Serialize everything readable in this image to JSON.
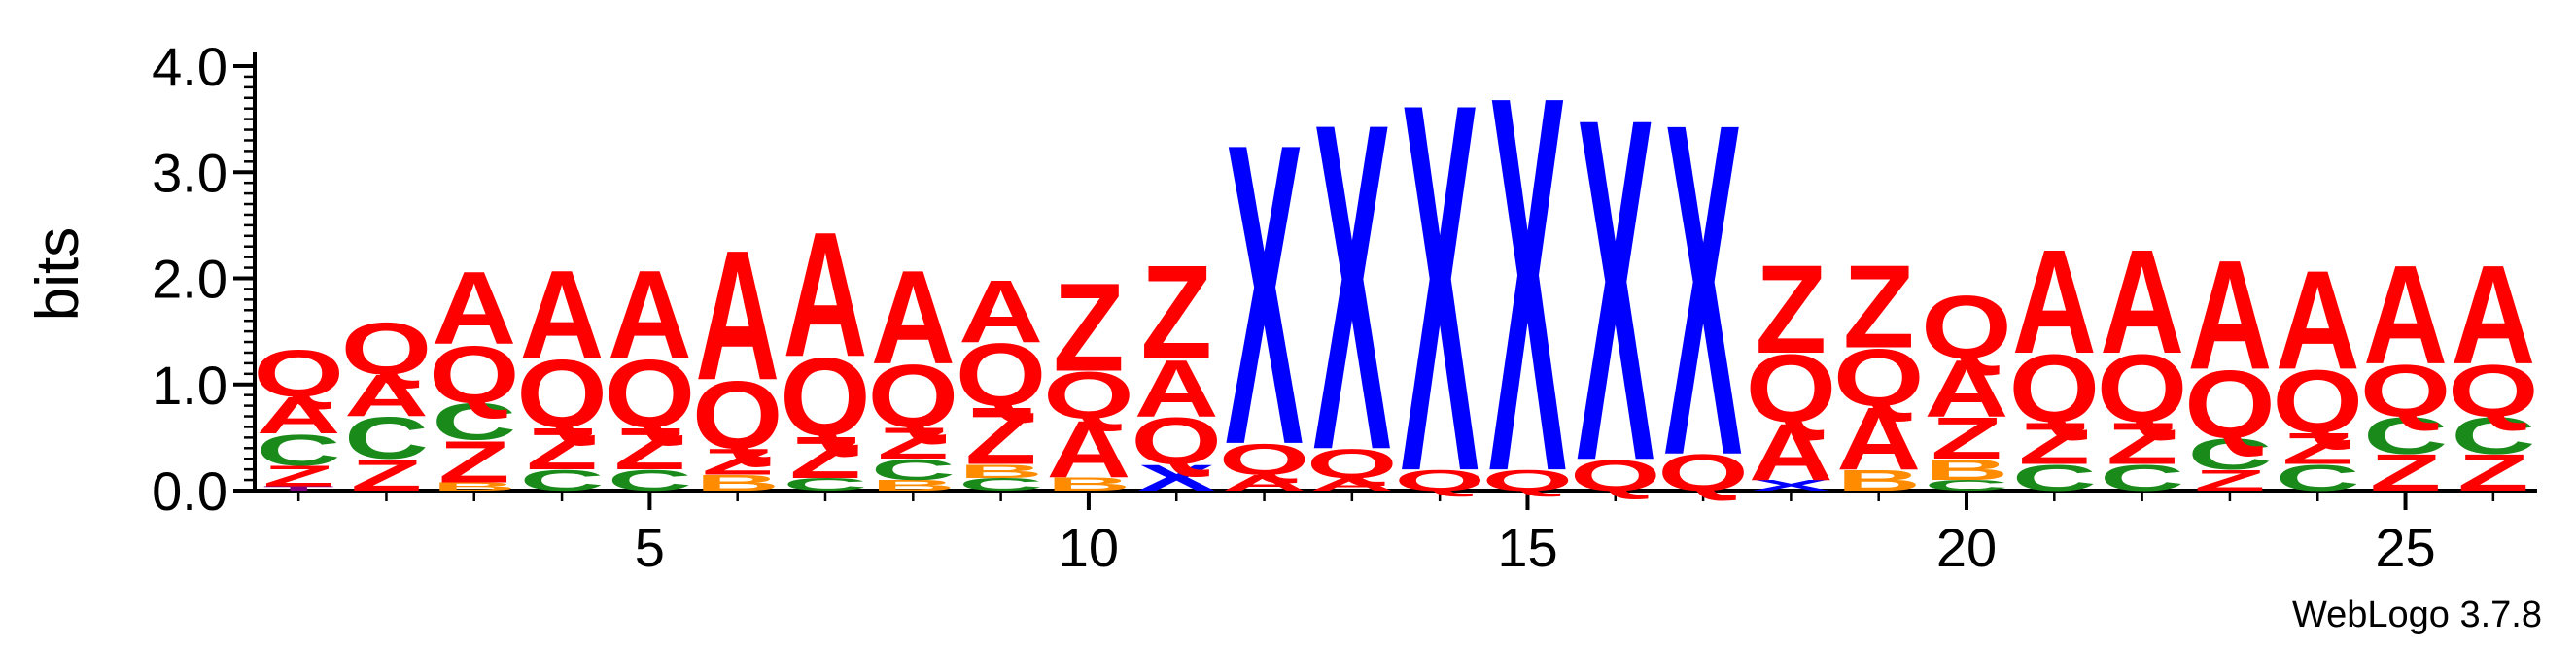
{
  "chart_data": {
    "type": "sequence-logo",
    "ylabel": "bits",
    "ylim": [
      0,
      4.0
    ],
    "yticks": [
      "0.0",
      "1.0",
      "2.0",
      "3.0",
      "4.0"
    ],
    "xticks": [
      "5",
      "10",
      "15",
      "20",
      "25"
    ],
    "xtick_positions": [
      5,
      10,
      15,
      20,
      25
    ],
    "credit": "WebLogo 3.7.8",
    "colors": {
      "Q": "#ff0000",
      "A": "#ff0000",
      "Z": "#ff0000",
      "X": "#0000ff",
      "C": "#1a8a1a",
      "B": "#ff8c00",
      "T": "#800080"
    },
    "positions": [
      {
        "pos": 1,
        "stack": [
          [
            "T",
            0.04
          ],
          [
            "Z",
            0.2
          ],
          [
            "C",
            0.3
          ],
          [
            "A",
            0.35
          ],
          [
            "Q",
            0.45
          ]
        ]
      },
      {
        "pos": 2,
        "stack": [
          [
            "Z",
            0.3
          ],
          [
            "C",
            0.4
          ],
          [
            "A",
            0.4
          ],
          [
            "Q",
            0.5
          ]
        ]
      },
      {
        "pos": 3,
        "stack": [
          [
            "B",
            0.08
          ],
          [
            "Z",
            0.4
          ],
          [
            "C",
            0.35
          ],
          [
            "Q",
            0.55
          ],
          [
            "A",
            0.7
          ]
        ]
      },
      {
        "pos": 4,
        "stack": [
          [
            "C",
            0.2
          ],
          [
            "Z",
            0.4
          ],
          [
            "Q",
            0.65
          ],
          [
            "A",
            0.85
          ]
        ]
      },
      {
        "pos": 5,
        "stack": [
          [
            "C",
            0.2
          ],
          [
            "Z",
            0.4
          ],
          [
            "Q",
            0.65
          ],
          [
            "A",
            0.85
          ]
        ]
      },
      {
        "pos": 6,
        "stack": [
          [
            "B",
            0.15
          ],
          [
            "Z",
            0.25
          ],
          [
            "Q",
            0.65
          ],
          [
            "A",
            1.25
          ]
        ]
      },
      {
        "pos": 7,
        "stack": [
          [
            "C",
            0.12
          ],
          [
            "Z",
            0.4
          ],
          [
            "Q",
            0.75
          ],
          [
            "A",
            1.2
          ]
        ]
      },
      {
        "pos": 8,
        "stack": [
          [
            "B",
            0.1
          ],
          [
            "C",
            0.2
          ],
          [
            "Z",
            0.3
          ],
          [
            "Q",
            0.6
          ],
          [
            "A",
            0.9
          ]
        ]
      },
      {
        "pos": 9,
        "stack": [
          [
            "C",
            0.12
          ],
          [
            "B",
            0.13
          ],
          [
            "Z",
            0.55
          ],
          [
            "Q",
            0.6
          ],
          [
            "A",
            0.6
          ]
        ]
      },
      {
        "pos": 10,
        "stack": [
          [
            "B",
            0.13
          ],
          [
            "A",
            0.55
          ],
          [
            "Q",
            0.45
          ],
          [
            "Z",
            0.85
          ]
        ]
      },
      {
        "pos": 11,
        "stack": [
          [
            "X",
            0.25
          ],
          [
            "Q",
            0.45
          ],
          [
            "A",
            0.55
          ],
          [
            "Z",
            0.9
          ]
        ]
      },
      {
        "pos": 12,
        "stack": [
          [
            "A",
            0.15
          ],
          [
            "Q",
            0.3
          ],
          [
            "X",
            2.9
          ]
        ]
      },
      {
        "pos": 13,
        "stack": [
          [
            "A",
            0.12
          ],
          [
            "Q",
            0.28
          ],
          [
            "X",
            3.15
          ]
        ]
      },
      {
        "pos": 14,
        "stack": [
          [
            "Q",
            0.2
          ],
          [
            "X",
            3.55
          ]
        ]
      },
      {
        "pos": 15,
        "stack": [
          [
            "Q",
            0.2
          ],
          [
            "X",
            3.62
          ]
        ]
      },
      {
        "pos": 16,
        "stack": [
          [
            "Q",
            0.3
          ],
          [
            "X",
            3.3
          ]
        ]
      },
      {
        "pos": 17,
        "stack": [
          [
            "Q",
            0.35
          ],
          [
            "X",
            3.2
          ]
        ]
      },
      {
        "pos": 18,
        "stack": [
          [
            "X",
            0.1
          ],
          [
            "A",
            0.55
          ],
          [
            "Q",
            0.65
          ],
          [
            "Z",
            0.85
          ]
        ]
      },
      {
        "pos": 19,
        "stack": [
          [
            "B",
            0.2
          ],
          [
            "A",
            0.6
          ],
          [
            "Q",
            0.55
          ],
          [
            "Z",
            0.8
          ]
        ]
      },
      {
        "pos": 20,
        "stack": [
          [
            "C",
            0.1
          ],
          [
            "B",
            0.2
          ],
          [
            "Z",
            0.4
          ],
          [
            "A",
            0.55
          ],
          [
            "Q",
            0.6
          ]
        ]
      },
      {
        "pos": 21,
        "stack": [
          [
            "C",
            0.25
          ],
          [
            "Z",
            0.4
          ],
          [
            "Q",
            0.65
          ],
          [
            "A",
            1.0
          ]
        ]
      },
      {
        "pos": 22,
        "stack": [
          [
            "C",
            0.25
          ],
          [
            "Z",
            0.4
          ],
          [
            "Q",
            0.65
          ],
          [
            "A",
            1.0
          ]
        ]
      },
      {
        "pos": 23,
        "stack": [
          [
            "Z",
            0.2
          ],
          [
            "C",
            0.3
          ],
          [
            "Q",
            0.65
          ],
          [
            "A",
            1.05
          ]
        ]
      },
      {
        "pos": 24,
        "stack": [
          [
            "C",
            0.25
          ],
          [
            "Z",
            0.3
          ],
          [
            "Q",
            0.6
          ],
          [
            "A",
            0.95
          ]
        ]
      },
      {
        "pos": 25,
        "stack": [
          [
            "Z",
            0.35
          ],
          [
            "C",
            0.35
          ],
          [
            "Q",
            0.5
          ],
          [
            "A",
            0.95
          ]
        ]
      },
      {
        "pos": 26,
        "stack": [
          [
            "Z",
            0.35
          ],
          [
            "C",
            0.35
          ],
          [
            "Q",
            0.5
          ],
          [
            "A",
            0.95
          ]
        ]
      }
    ]
  }
}
